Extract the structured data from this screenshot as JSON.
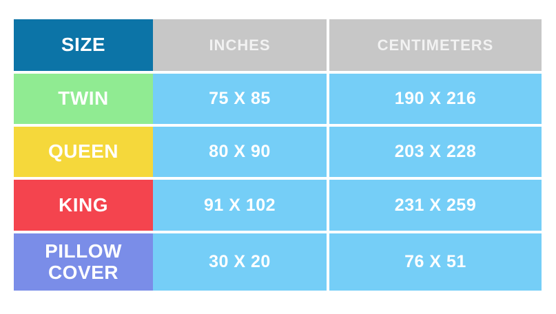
{
  "chart_data": {
    "type": "table",
    "columns": [
      "SIZE",
      "INCHES",
      "CENTIMETERS"
    ],
    "rows": [
      [
        "TWIN",
        "75 X 85",
        "190 X 216"
      ],
      [
        "QUEEN",
        "80 X 90",
        "203 X 228"
      ],
      [
        "KING",
        "91 X 102",
        "231 X 259"
      ],
      [
        "PILLOW COVER",
        "30 X 20",
        "76 X 51"
      ]
    ]
  },
  "table": {
    "header": {
      "size": "SIZE",
      "inches": "INCHES",
      "centimeters": "CENTIMETERS"
    },
    "rows": [
      {
        "size": "TWIN",
        "inches": "75 X 85",
        "centimeters": "190 X 216",
        "color": "#90EB92"
      },
      {
        "size": "QUEEN",
        "inches": "80 X 90",
        "centimeters": "203 X 228",
        "color": "#F5D83B"
      },
      {
        "size": "KING",
        "inches": "91 X 102",
        "centimeters": "231 X 259",
        "color": "#F4444E"
      },
      {
        "size": "PILLOW COVER",
        "inches": "30 X 20",
        "centimeters": "76 X 51",
        "color": "#7A8DE8"
      }
    ],
    "colors": {
      "header_size_bg": "#0C74A7",
      "header_unit_bg": "#C7C7C7",
      "value_bg": "#75CEF7",
      "text": "#FFFFFF",
      "header_unit_text": "#F2F2F2",
      "background": "#FFFFFF"
    }
  }
}
